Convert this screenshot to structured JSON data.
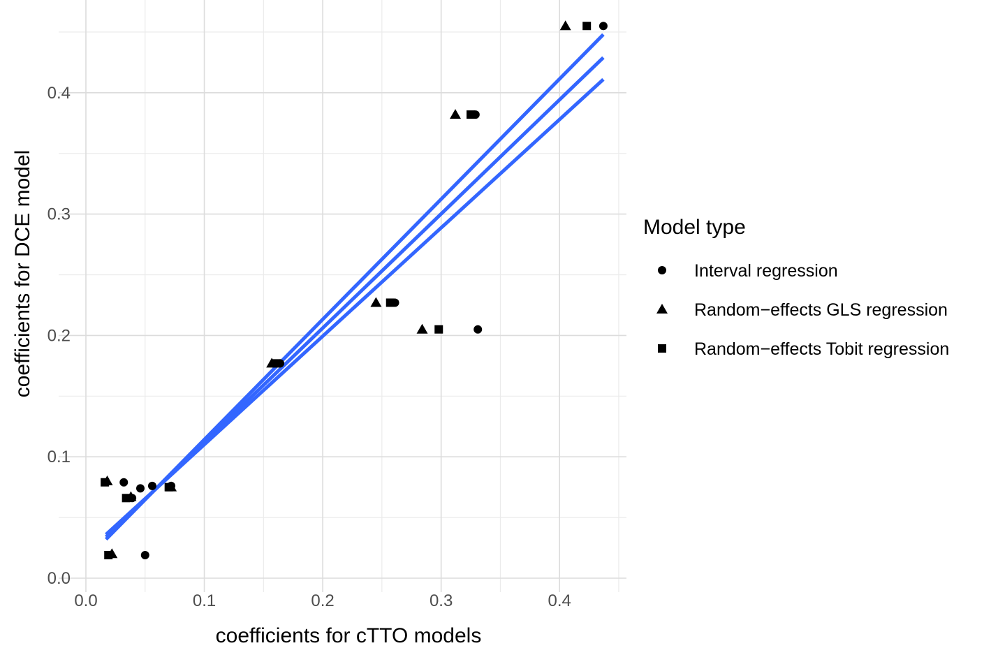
{
  "chart_data": {
    "type": "scatter",
    "xlabel": "coefficients for cTTO models",
    "ylabel": "coefficients for DCE model",
    "xlim": [
      0,
      0.457
    ],
    "ylim": [
      0,
      0.457
    ],
    "x_ticks": [
      "0.0",
      "0.1",
      "0.2",
      "0.3",
      "0.4"
    ],
    "y_ticks": [
      "0.0",
      "0.1",
      "0.2",
      "0.3",
      "0.4"
    ],
    "grid": true,
    "legend": {
      "title": "Model type",
      "position": "right",
      "entries": [
        {
          "label": "Interval regression",
          "shape": "circle"
        },
        {
          "label": "Random−effects GLS regression",
          "shape": "triangle"
        },
        {
          "label": "Random−effects Tobit regression",
          "shape": "square"
        }
      ]
    },
    "series": [
      {
        "name": "Interval regression",
        "shape": "circle",
        "points": [
          {
            "x": 0.437,
            "y": 0.455
          },
          {
            "x": 0.329,
            "y": 0.382
          },
          {
            "x": 0.261,
            "y": 0.227
          },
          {
            "x": 0.331,
            "y": 0.205
          },
          {
            "x": 0.164,
            "y": 0.177
          },
          {
            "x": 0.032,
            "y": 0.079
          },
          {
            "x": 0.046,
            "y": 0.074
          },
          {
            "x": 0.056,
            "y": 0.076
          },
          {
            "x": 0.072,
            "y": 0.076
          },
          {
            "x": 0.039,
            "y": 0.066
          },
          {
            "x": 0.05,
            "y": 0.019
          }
        ]
      },
      {
        "name": "Random−effects GLS regression",
        "shape": "triangle",
        "points": [
          {
            "x": 0.405,
            "y": 0.455
          },
          {
            "x": 0.312,
            "y": 0.382
          },
          {
            "x": 0.245,
            "y": 0.227
          },
          {
            "x": 0.284,
            "y": 0.205
          },
          {
            "x": 0.157,
            "y": 0.177
          },
          {
            "x": 0.018,
            "y": 0.08
          },
          {
            "x": 0.038,
            "y": 0.067
          },
          {
            "x": 0.072,
            "y": 0.075
          },
          {
            "x": 0.022,
            "y": 0.02
          }
        ]
      },
      {
        "name": "Random−effects Tobit regression",
        "shape": "square",
        "points": [
          {
            "x": 0.423,
            "y": 0.455
          },
          {
            "x": 0.325,
            "y": 0.382
          },
          {
            "x": 0.257,
            "y": 0.227
          },
          {
            "x": 0.298,
            "y": 0.205
          },
          {
            "x": 0.161,
            "y": 0.177
          },
          {
            "x": 0.016,
            "y": 0.079
          },
          {
            "x": 0.034,
            "y": 0.066
          },
          {
            "x": 0.07,
            "y": 0.075
          },
          {
            "x": 0.019,
            "y": 0.019
          }
        ]
      }
    ],
    "fit_lines": {
      "color": "#3366ff",
      "lines": [
        {
          "x": [
            0.017,
            0.437
          ],
          "y": [
            0.032,
            0.448
          ]
        },
        {
          "x": [
            0.017,
            0.437
          ],
          "y": [
            0.034,
            0.429
          ]
        },
        {
          "x": [
            0.017,
            0.437
          ],
          "y": [
            0.036,
            0.411
          ]
        }
      ]
    }
  }
}
